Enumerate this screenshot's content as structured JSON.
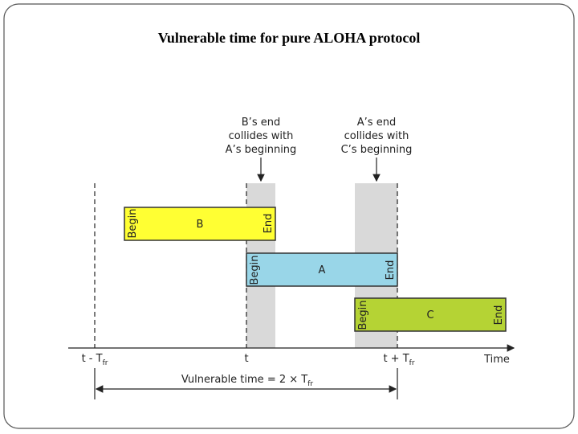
{
  "title": "Vulnerable time for pure ALOHA protocol",
  "annotations": [
    {
      "lines": [
        "B’s end",
        "collides with",
        "A’s beginning"
      ]
    },
    {
      "lines": [
        "A’s end",
        "collides with",
        "C’s beginning"
      ]
    }
  ],
  "frames": [
    {
      "label": "B",
      "begin": "Begin",
      "end": "End"
    },
    {
      "label": "A",
      "begin": "Begin",
      "end": "End"
    },
    {
      "label": "C",
      "begin": "Begin",
      "end": "End"
    }
  ],
  "axis": {
    "ticks": [
      {
        "main": "t - T",
        "sub": "fr"
      },
      {
        "main": "t"
      },
      {
        "main": "t + T",
        "sub": "fr"
      }
    ],
    "label": "Time"
  },
  "vulnerable": {
    "main": "Vulnerable time = 2 × T",
    "sub": "fr"
  }
}
